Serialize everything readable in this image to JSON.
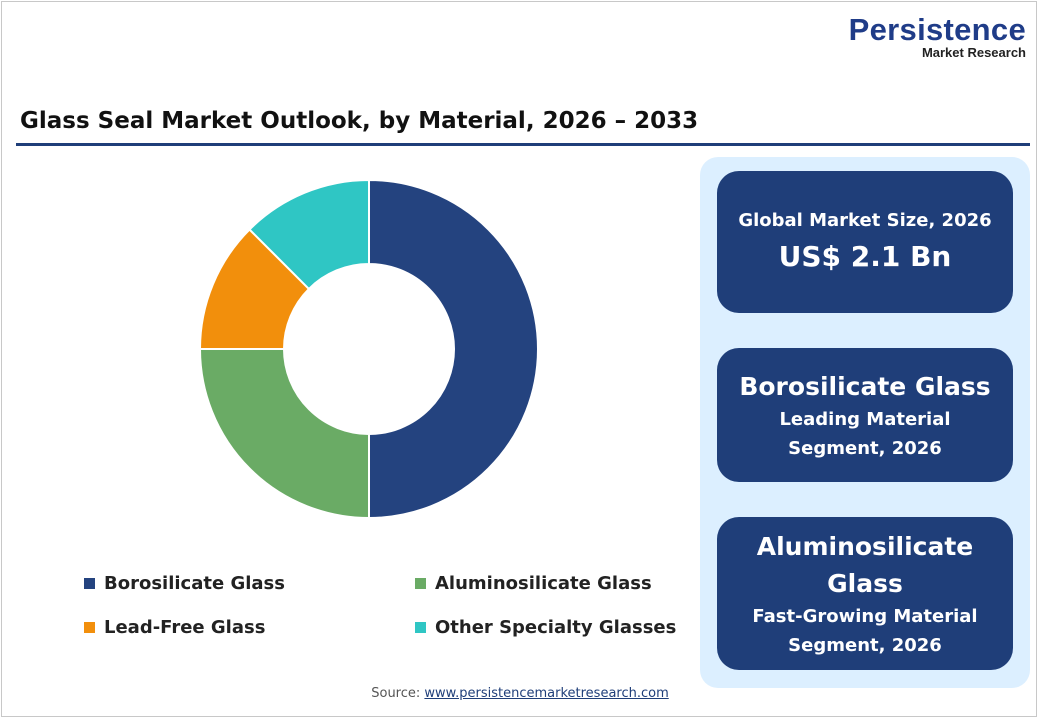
{
  "logo": {
    "line1": "Persistence",
    "line2": "Market Research"
  },
  "chart_data": {
    "type": "pie",
    "variant": "donut",
    "title": "Glass Seal Market Outlook, by Material, 2026 – 2033",
    "categories": [
      "Borosilicate Glass",
      "Aluminosilicate Glass",
      "Lead-Free Glass",
      "Other Specialty Glasses"
    ],
    "values": [
      50,
      25,
      12.5,
      12.5
    ],
    "unit": "%",
    "colors": [
      "#24437f",
      "#6aab65",
      "#f28f0c",
      "#2fc6c4"
    ],
    "legend_position": "bottom"
  },
  "cards": [
    {
      "top": "Global Market Size, 2026",
      "big": "US$ 2.1 Bn"
    },
    {
      "big": "Borosilicate Glass",
      "sub1": "Leading Material",
      "sub2": "Segment, 2026"
    },
    {
      "big1": "Aluminosilicate",
      "big2": "Glass",
      "sub1": "Fast-Growing Material",
      "sub2": "Segment, 2026"
    }
  ],
  "source": {
    "label": "Source:",
    "link": "www.persistencemarketresearch.com"
  }
}
